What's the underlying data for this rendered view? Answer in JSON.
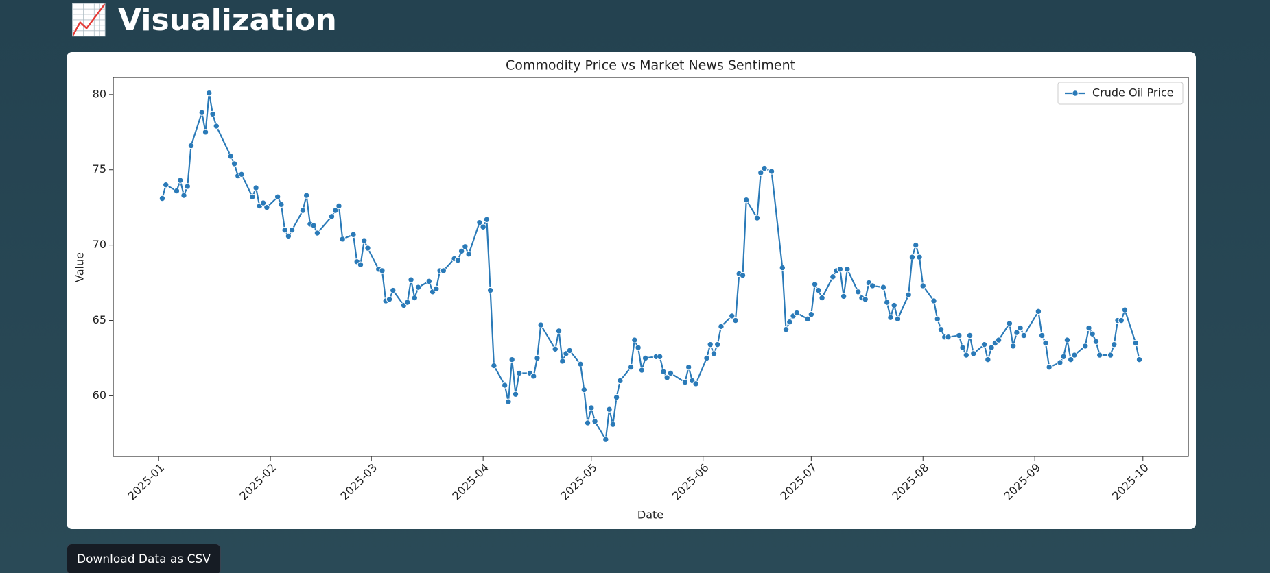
{
  "header": {
    "title": "📈 Visualization"
  },
  "chart_data": {
    "type": "line",
    "title": "Commodity Price vs Market News Sentiment",
    "xlabel": "Date",
    "ylabel": "Value",
    "xlim": [
      -12.6,
      285.6
    ],
    "ylim": [
      55.97,
      81.13
    ],
    "xticks": [
      {
        "value": 0,
        "label": "2025-01"
      },
      {
        "value": 31,
        "label": "2025-02"
      },
      {
        "value": 59,
        "label": "2025-03"
      },
      {
        "value": 90,
        "label": "2025-04"
      },
      {
        "value": 120,
        "label": "2025-05"
      },
      {
        "value": 151,
        "label": "2025-06"
      },
      {
        "value": 181,
        "label": "2025-07"
      },
      {
        "value": 212,
        "label": "2025-08"
      },
      {
        "value": 243,
        "label": "2025-09"
      },
      {
        "value": 273,
        "label": "2025-10"
      }
    ],
    "yticks": [
      60,
      65,
      70,
      75,
      80
    ],
    "grid": false,
    "legend": "upper right",
    "marker": "circle",
    "x": [
      1,
      2,
      5,
      6,
      7,
      8,
      9,
      12,
      13,
      14,
      15,
      16,
      20,
      21,
      22,
      23,
      26,
      27,
      28,
      29,
      30,
      33,
      34,
      35,
      36,
      37,
      40,
      41,
      42,
      43,
      44,
      48,
      49,
      50,
      51,
      54,
      55,
      56,
      57,
      58,
      61,
      62,
      63,
      64,
      65,
      68,
      69,
      70,
      71,
      72,
      75,
      76,
      77,
      78,
      79,
      82,
      83,
      84,
      85,
      86,
      89,
      90,
      91,
      92,
      93,
      96,
      97,
      98,
      99,
      100,
      103,
      104,
      105,
      106,
      110,
      111,
      112,
      113,
      114,
      117,
      118,
      119,
      120,
      121,
      124,
      125,
      126,
      127,
      128,
      131,
      132,
      133,
      134,
      135,
      138,
      139,
      140,
      141,
      142,
      146,
      147,
      148,
      149,
      152,
      153,
      154,
      155,
      156,
      159,
      160,
      161,
      162,
      163,
      166,
      167,
      168,
      170,
      173,
      174,
      175,
      176,
      177,
      180,
      181,
      182,
      183,
      184,
      187,
      188,
      189,
      190,
      191,
      194,
      195,
      196,
      197,
      198,
      201,
      202,
      203,
      204,
      205,
      208,
      209,
      210,
      211,
      212,
      215,
      216,
      217,
      218,
      219,
      222,
      223,
      224,
      225,
      226,
      229,
      230,
      231,
      232,
      233,
      236,
      237,
      238,
      239,
      240,
      244,
      245,
      246,
      247,
      250,
      251,
      252,
      253,
      254,
      257,
      258,
      259,
      260,
      261,
      264,
      265,
      266,
      267,
      268,
      271,
      272
    ],
    "series": [
      {
        "name": "Crude Oil Price",
        "color": "#2a7ab8",
        "values": [
          73.1,
          74.0,
          73.6,
          74.3,
          73.3,
          73.9,
          76.6,
          78.8,
          77.5,
          80.1,
          78.7,
          77.9,
          75.9,
          75.4,
          74.6,
          74.7,
          73.2,
          73.8,
          72.6,
          72.8,
          72.5,
          73.2,
          72.7,
          71.0,
          70.6,
          71.0,
          72.3,
          73.3,
          71.4,
          71.3,
          70.8,
          71.9,
          72.3,
          72.6,
          70.4,
          70.7,
          68.9,
          68.7,
          70.3,
          69.8,
          68.4,
          68.3,
          66.3,
          66.4,
          67.0,
          66.0,
          66.2,
          67.7,
          66.5,
          67.2,
          67.6,
          66.9,
          67.1,
          68.3,
          68.3,
          69.1,
          69.0,
          69.6,
          69.9,
          69.4,
          71.5,
          71.2,
          71.7,
          67.0,
          62.0,
          60.7,
          59.6,
          62.4,
          60.1,
          61.5,
          61.5,
          61.3,
          62.5,
          64.7,
          63.1,
          64.3,
          62.3,
          62.8,
          63.0,
          62.1,
          60.4,
          58.2,
          59.2,
          58.3,
          57.1,
          59.1,
          58.1,
          59.9,
          61.0,
          61.9,
          63.7,
          63.2,
          61.7,
          62.5,
          62.6,
          62.6,
          61.6,
          61.2,
          61.5,
          60.9,
          61.9,
          61.0,
          60.8,
          62.5,
          63.4,
          62.8,
          63.4,
          64.6,
          65.3,
          65.0,
          68.1,
          68.0,
          73.0,
          71.8,
          74.8,
          75.1,
          74.9,
          68.5,
          64.4,
          64.9,
          65.3,
          65.5,
          65.1,
          65.4,
          67.4,
          67.0,
          66.5,
          67.9,
          68.3,
          68.4,
          66.6,
          68.4,
          66.9,
          66.5,
          66.4,
          67.5,
          67.3,
          67.2,
          66.2,
          65.2,
          66.0,
          65.1,
          66.7,
          69.2,
          70.0,
          69.2,
          67.3,
          66.3,
          65.1,
          64.4,
          63.9,
          63.9,
          64.0,
          63.2,
          62.7,
          64.0,
          62.8,
          63.4,
          62.4,
          63.2,
          63.5,
          63.7,
          64.8,
          63.3,
          64.2,
          64.5,
          64.0,
          65.6,
          64.0,
          63.5,
          61.9,
          62.2,
          62.6,
          63.7,
          62.4,
          62.7,
          63.3,
          64.5,
          64.1,
          63.6,
          62.7,
          62.7,
          63.4,
          65.0,
          65.0,
          65.7,
          63.5,
          62.4
        ]
      }
    ]
  },
  "button": {
    "label": "Download Data as CSV"
  }
}
